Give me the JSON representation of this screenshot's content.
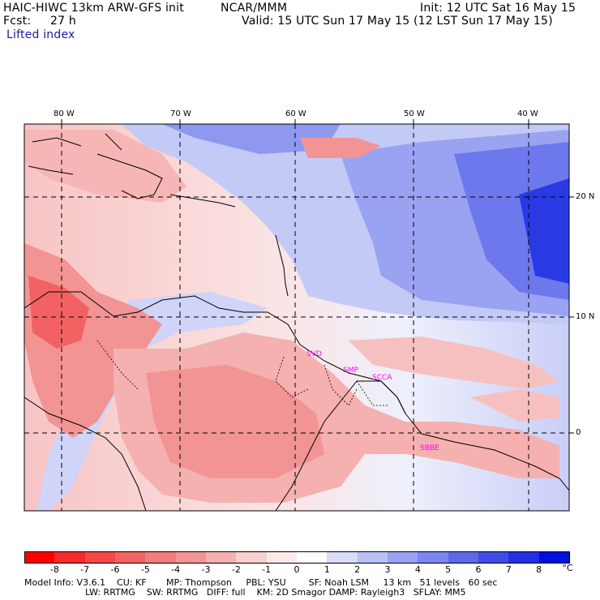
{
  "header": {
    "model": "HAIC-HIWC 13km ARW-GFS init",
    "org": "NCAR/MMM",
    "init": "Init: 12 UTC Sat 16 May 15",
    "fcst_label": "Fcst:",
    "fcst_value": "27 h",
    "valid": "Valid: 15 UTC Sun 17 May 15 (12 LST Sun 17 May 15)",
    "field": "Lifted index"
  },
  "map": {
    "lon_labels": [
      "80 W",
      "70 W",
      "60 W",
      "50 W",
      "40 W"
    ],
    "lat_labels": [
      "20 N",
      "10 N",
      "0"
    ],
    "cities": [
      "SVD",
      "SMP",
      "SCCA",
      "SBBE"
    ]
  },
  "colorbar": {
    "labels": [
      "-8",
      "-7",
      "-6",
      "-5",
      "-4",
      "-3",
      "-2",
      "-1",
      "0",
      "1",
      "2",
      "3",
      "4",
      "5",
      "6",
      "7",
      "8"
    ],
    "unit": "°C",
    "colors": [
      "#ff0000",
      "#f52a2a",
      "#f44747",
      "#f26262",
      "#f27c7c",
      "#f29494",
      "#f5b0b0",
      "#f9cfcf",
      "#fde9e9",
      "#ffffff",
      "#d8dcf9",
      "#b9c0f5",
      "#9aa3f1",
      "#7c86ee",
      "#5e69ea",
      "#3f4de6",
      "#2030e2",
      "#0010de"
    ]
  },
  "footer": {
    "line1": "Model Info: V3.6.1    CU: KF       MP: Thompson     PBL: YSU        SF: Noah LSM     13 km   51 levels   60 sec",
    "line2": "LW: RRTMG    SW: RRTMG   DIFF: full    KM: 2D Smagor DAMP: Rayleigh3   SFLAY: MM5"
  }
}
